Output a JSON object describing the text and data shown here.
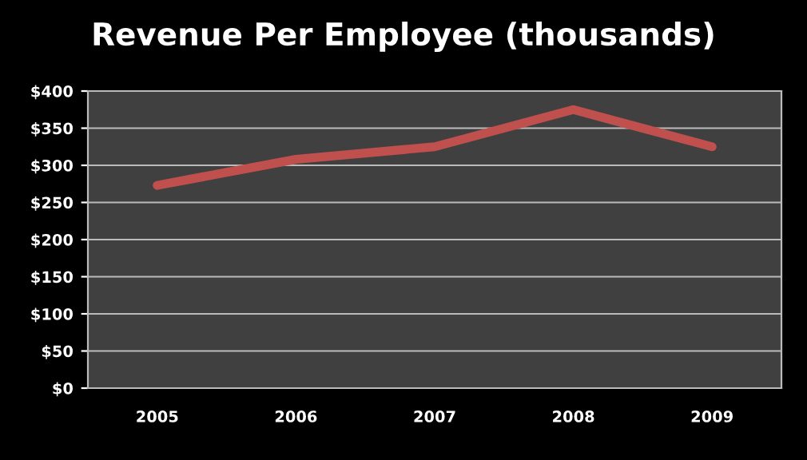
{
  "chart_data": {
    "type": "line",
    "title": "Revenue Per Employee (thousands)",
    "categories": [
      "2005",
      "2006",
      "2007",
      "2008",
      "2009"
    ],
    "series": [
      {
        "color": "#c0504d",
        "values": [
          273,
          308,
          325,
          375,
          325
        ]
      }
    ],
    "ylim": [
      0,
      400
    ],
    "yticks": [
      {
        "value": 0,
        "label": "$0"
      },
      {
        "value": 50,
        "label": "$50"
      },
      {
        "value": 100,
        "label": "$100"
      },
      {
        "value": 150,
        "label": "$150"
      },
      {
        "value": 200,
        "label": "$200"
      },
      {
        "value": 250,
        "label": "$250"
      },
      {
        "value": 300,
        "label": "$300"
      },
      {
        "value": 350,
        "label": "$350"
      },
      {
        "value": 400,
        "label": "$400"
      }
    ],
    "grid": "y",
    "legend": false,
    "marker": "none",
    "line_style": "solid"
  }
}
